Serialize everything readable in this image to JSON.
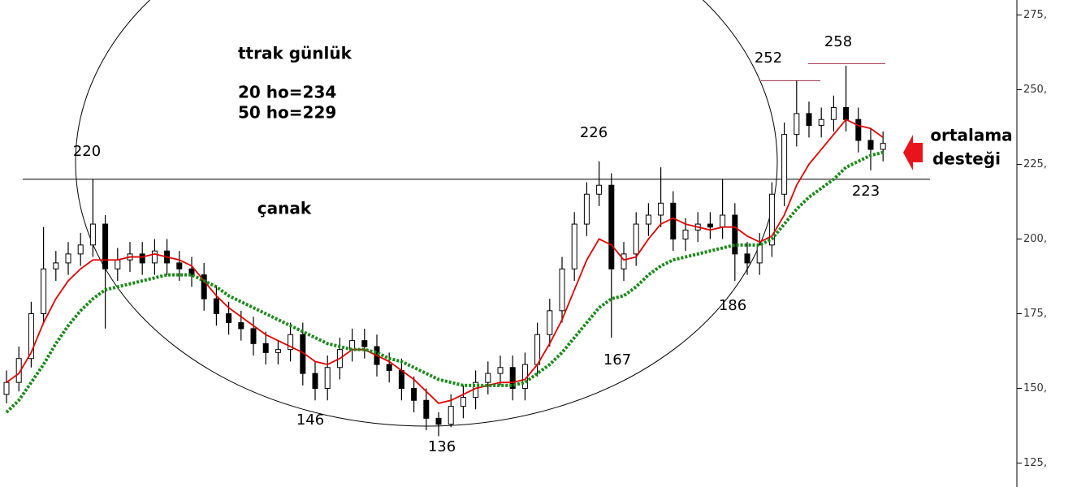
{
  "chart_data": {
    "type": "candlestick",
    "title": "ttrak günlük",
    "notes": [
      "20 ho=234",
      "50 ho=229"
    ],
    "annotations": [
      "çanak",
      "220",
      "226",
      "252",
      "258",
      "146",
      "136",
      "167",
      "186",
      "223",
      "ortalama",
      "desteği"
    ],
    "ylim": [
      117,
      280
    ],
    "yticks": [
      {
        "value": 125,
        "label": "125,"
      },
      {
        "value": 150,
        "label": "150,"
      },
      {
        "value": 175,
        "label": "175,"
      },
      {
        "value": 200,
        "label": "200,"
      },
      {
        "value": 225,
        "label": "225,"
      },
      {
        "value": 250,
        "label": "250,"
      },
      {
        "value": 275,
        "label": "275,"
      }
    ],
    "hlines": [
      220,
      253,
      258.7
    ],
    "open": [
      148,
      152,
      160,
      175,
      190,
      192,
      195,
      198,
      205,
      190,
      193,
      195,
      192,
      196,
      192,
      190,
      188,
      180,
      175,
      172,
      170,
      165,
      162,
      163,
      168,
      155,
      150,
      157,
      163,
      166,
      164,
      158,
      156,
      150,
      146,
      140,
      138,
      144,
      147,
      152,
      155,
      157,
      150,
      158,
      168,
      176,
      190,
      205,
      215,
      218,
      190,
      195,
      205,
      208,
      212,
      200,
      203,
      205,
      204,
      208,
      195,
      192,
      198,
      215,
      235,
      242,
      238,
      240,
      244,
      240,
      233,
      230
    ],
    "high": [
      156,
      164,
      179,
      204,
      196,
      199,
      202,
      220,
      208,
      197,
      199,
      199,
      200,
      200,
      196,
      194,
      192,
      184,
      179,
      176,
      174,
      169,
      166,
      172,
      172,
      159,
      161,
      167,
      170,
      170,
      168,
      162,
      160,
      154,
      150,
      142,
      148,
      151,
      156,
      159,
      161,
      161,
      162,
      172,
      180,
      194,
      209,
      219,
      226,
      222,
      199,
      209,
      212,
      224,
      216,
      207,
      209,
      209,
      220,
      212,
      199,
      202,
      219,
      239,
      253,
      246,
      244,
      248,
      258,
      244,
      237,
      236
    ],
    "low": [
      145,
      149,
      157,
      172,
      186,
      188,
      191,
      194,
      170,
      186,
      189,
      188,
      188,
      188,
      186,
      184,
      176,
      171,
      168,
      166,
      161,
      158,
      158,
      159,
      151,
      146,
      146,
      153,
      159,
      160,
      154,
      152,
      146,
      142,
      136,
      134,
      137,
      140,
      143,
      148,
      151,
      146,
      146,
      154,
      164,
      172,
      186,
      201,
      211,
      167,
      186,
      191,
      201,
      204,
      196,
      196,
      199,
      200,
      200,
      186,
      188,
      188,
      194,
      211,
      231,
      234,
      234,
      236,
      236,
      229,
      223,
      226
    ],
    "close": [
      152,
      160,
      175,
      190,
      192,
      195,
      198,
      205,
      190,
      193,
      195,
      192,
      196,
      192,
      190,
      188,
      180,
      175,
      172,
      170,
      165,
      162,
      163,
      168,
      155,
      150,
      157,
      163,
      166,
      164,
      158,
      156,
      150,
      146,
      140,
      138,
      144,
      147,
      152,
      155,
      157,
      150,
      158,
      168,
      176,
      190,
      205,
      215,
      218,
      190,
      195,
      205,
      208,
      212,
      200,
      203,
      205,
      204,
      208,
      195,
      192,
      198,
      215,
      235,
      242,
      238,
      240,
      244,
      240,
      233,
      230,
      232
    ],
    "series": [
      {
        "color": "#e00000",
        "values": [
          152,
          155,
          162,
          172,
          180,
          186,
          190,
          193,
          193,
          193,
          194,
          194,
          195,
          194,
          193,
          191,
          186,
          181,
          177,
          174,
          171,
          168,
          166,
          164,
          162,
          159,
          158,
          160,
          163,
          163,
          161,
          159,
          156,
          153,
          149,
          145,
          146,
          148,
          150,
          151,
          152,
          152,
          153,
          158,
          165,
          173,
          183,
          193,
          200,
          198,
          193,
          194,
          200,
          205,
          207,
          205,
          204,
          203,
          204,
          204,
          201,
          199,
          201,
          208,
          218,
          225,
          230,
          235,
          240,
          238,
          237,
          234
        ]
      },
      {
        "color": "#1a8a1a",
        "values": [
          142,
          146,
          152,
          158,
          165,
          171,
          176,
          180,
          183,
          184,
          185,
          186,
          187,
          188,
          188,
          188,
          186,
          184,
          181,
          179,
          177,
          175,
          173,
          171,
          169,
          167,
          165,
          164,
          163,
          163,
          162,
          160,
          159,
          157,
          155,
          153,
          152,
          151,
          151,
          151,
          151,
          151,
          152,
          155,
          158,
          162,
          167,
          172,
          177,
          180,
          181,
          184,
          188,
          191,
          193,
          194,
          195,
          196,
          197,
          198,
          198,
          198,
          200,
          205,
          210,
          214,
          217,
          220,
          224,
          226,
          228,
          229
        ]
      }
    ]
  }
}
